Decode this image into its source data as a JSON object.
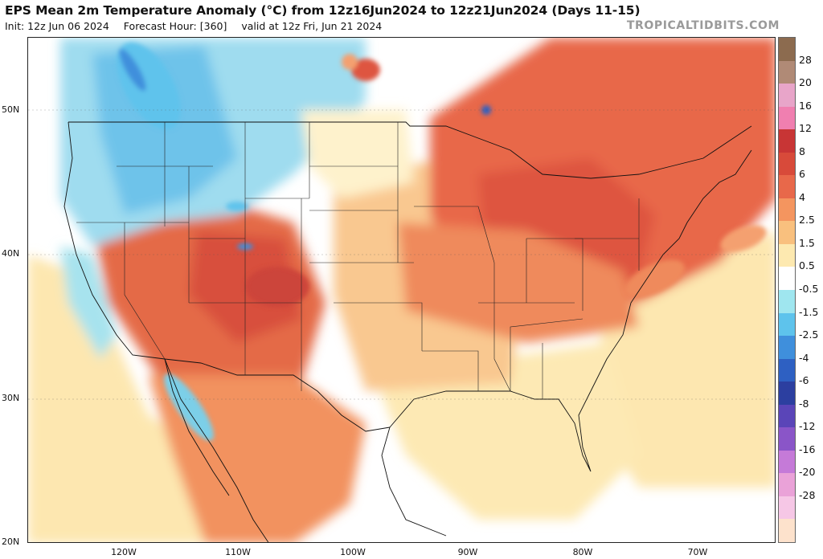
{
  "header": {
    "title": "EPS Mean 2m Temperature Anomaly (°C) from 12z16Jun2024 to 12z21Jun2024 (Days 11-15)",
    "init": "Init: 12z Jun 06 2024",
    "forecast_hour": "Forecast Hour: [360]",
    "valid": "valid at 12z Fri, Jun 21 2024",
    "watermark": "TROPICALTIDBITS.COM"
  },
  "map": {
    "lat_labels": [
      "50N",
      "40N",
      "30N",
      "20N"
    ],
    "lon_labels": [
      "120W",
      "110W",
      "100W",
      "90W",
      "80W",
      "70W"
    ]
  },
  "colorbar": {
    "labels": [
      "28",
      "20",
      "16",
      "12",
      "8",
      "6",
      "4",
      "2.5",
      "1.5",
      "0.5",
      "-0.5",
      "-1.5",
      "-2.5",
      "-4",
      "-6",
      "-8",
      "-12",
      "-16",
      "-20",
      "-28"
    ],
    "colors": [
      "#8c6b4f",
      "#b08a76",
      "#e8a5c9",
      "#f07fb0",
      "#c83535",
      "#d84a3a",
      "#e8684a",
      "#f4955f",
      "#f9c07e",
      "#fde9b0",
      "#ffffff",
      "#9fe6ef",
      "#5ec3ec",
      "#3f8fdc",
      "#2e60c2",
      "#2c3fa0",
      "#5a45b8",
      "#8a55c8",
      "#c57ad8",
      "#eaa2d8",
      "#f6c7e6",
      "#fde2cc"
    ]
  }
}
